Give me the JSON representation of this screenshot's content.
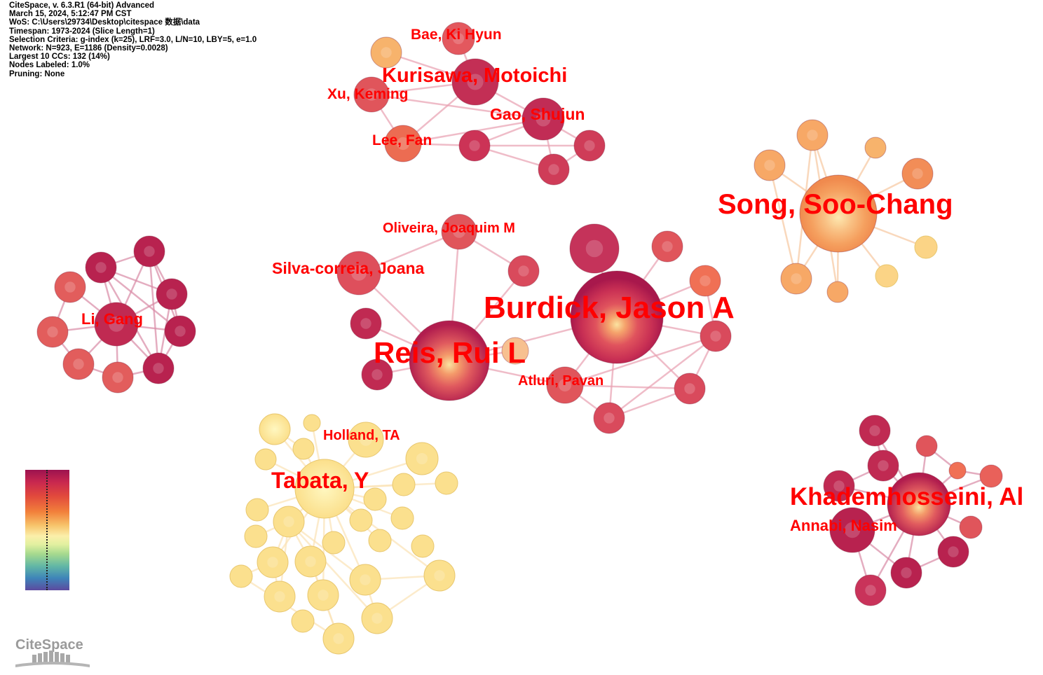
{
  "header_info": [
    "CiteSpace, v. 6.3.R1 (64-bit) Advanced",
    "March 15, 2024, 5:12:47 PM CST",
    "WoS: C:\\Users\\29734\\Desktop\\citespace 数据\\data",
    "Timespan: 1973-2024 (Slice Length=1)",
    "Selection Criteria: g-index (k=25), LRF=3.0, L/N=10, LBY=5, e=1.0",
    "Network: N=923, E=1186 (Density=0.0028)",
    "Largest 10 CCs: 132 (14%)",
    "Nodes Labeled: 1.0%",
    "Pruning: None"
  ],
  "logo_text": "CiteSpace",
  "colors": {
    "label": "#ff0000",
    "dark": "#b8204f",
    "red": "#d9485a",
    "orange": "#f29d5e",
    "light_orange": "#f7bd72",
    "yellow": "#fbe08e"
  },
  "labels": [
    "Bae, Ki Hyun",
    "Kurisawa, Motoichi",
    "Xu, Keming",
    "Gao, Shujun",
    "Lee, Fan",
    "Song, Soo-Chang",
    "Oliveira, Joaquim M",
    "Silva-correia, Joana",
    "Burdick, Jason A",
    "Li, Gang",
    "Reis, Rui L",
    "Atluri, Pavan",
    "Holland, TA",
    "Tabata, Y",
    "Khademhosseini, Al",
    "Annabi, Nasim"
  ]
}
